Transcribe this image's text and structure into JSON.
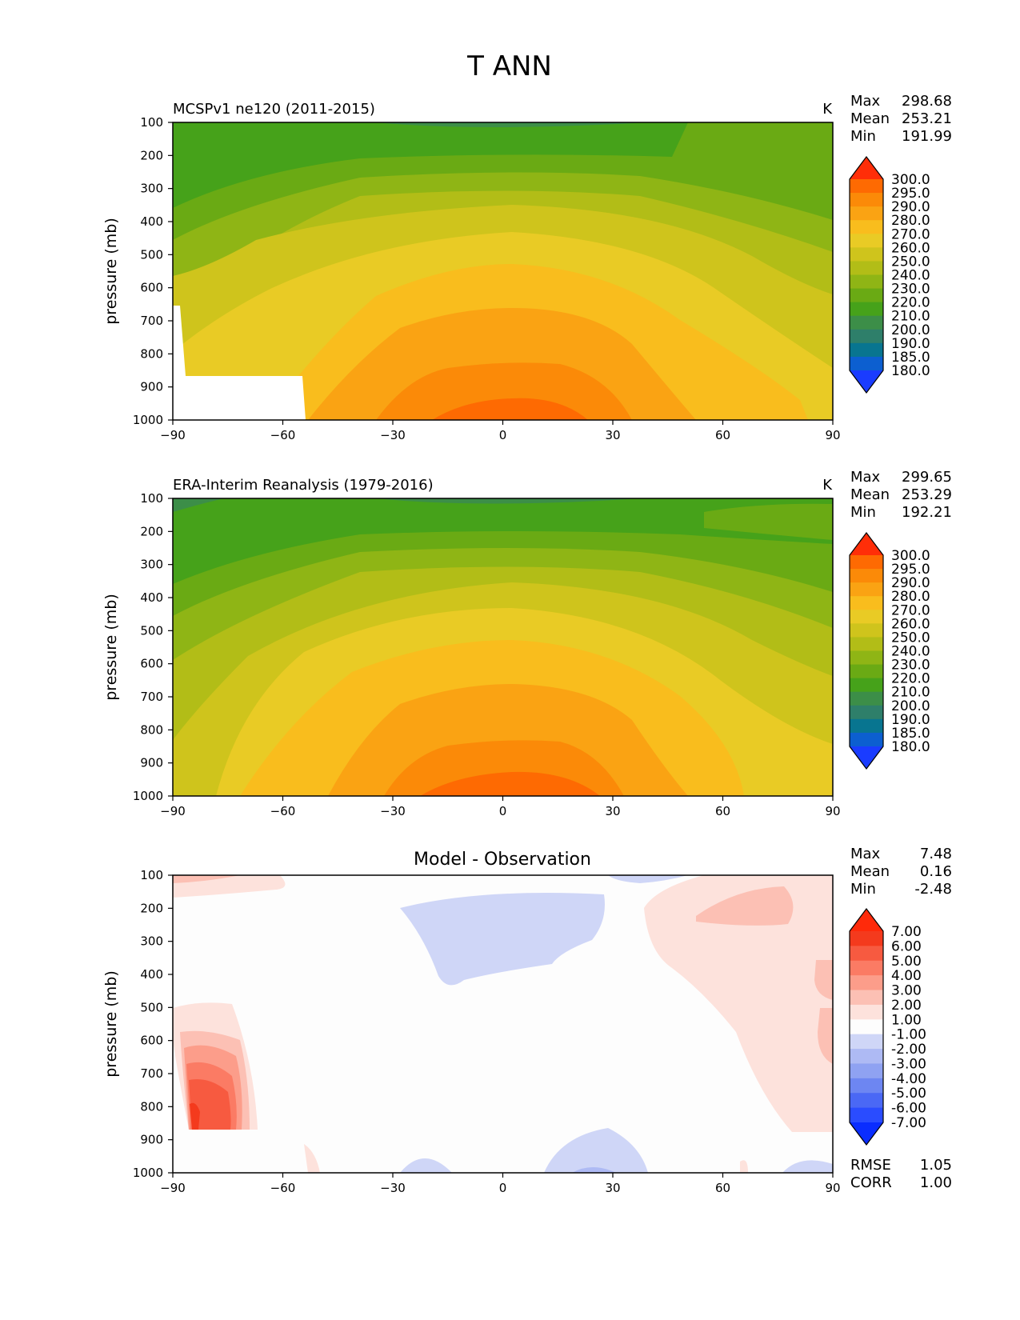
{
  "figure_title": "T ANN",
  "chart_data": [
    {
      "type": "heatmap",
      "title": "MCSPv1 ne120 (2011-2015)",
      "units": "K",
      "ylabel": "pressure (mb)",
      "xlabel": "",
      "xlim": [
        -90,
        90
      ],
      "ylim": [
        1000,
        100
      ],
      "x_ticks": [
        "−90",
        "−60",
        "−30",
        "0",
        "30",
        "60",
        "90"
      ],
      "y_ticks": [
        "100",
        "200",
        "300",
        "400",
        "500",
        "600",
        "700",
        "800",
        "900",
        "1000"
      ],
      "stats": [
        {
          "label": "Max",
          "value": "298.68"
        },
        {
          "label": "Mean",
          "value": "253.21"
        },
        {
          "label": "Min",
          "value": "191.99"
        }
      ],
      "colorbar_levels": [
        "180.0",
        "185.0",
        "190.0",
        "200.0",
        "210.0",
        "220.0",
        "230.0",
        "240.0",
        "250.0",
        "260.0",
        "270.0",
        "280.0",
        "290.0",
        "295.0",
        "300.0"
      ],
      "colorbar_colors": [
        "#1a3cff",
        "#0c5fd0",
        "#087590",
        "#2e7f6a",
        "#3c8e48",
        "#46a21a",
        "#6aaa14",
        "#8fb515",
        "#b2bd17",
        "#cfc41c",
        "#e9cb25",
        "#f9bd1d",
        "#faa313",
        "#fb8a08",
        "#fe6a02",
        "#ff2e08"
      ],
      "grid": false,
      "missing_region": "land/below surface south of about 55S",
      "field": "annual mean zonal mean temperature"
    },
    {
      "type": "heatmap",
      "title": "ERA-Interim Reanalysis (1979-2016)",
      "units": "K",
      "ylabel": "pressure (mb)",
      "xlabel": "",
      "xlim": [
        -90,
        90
      ],
      "ylim": [
        1000,
        100
      ],
      "x_ticks": [
        "−90",
        "−60",
        "−30",
        "0",
        "30",
        "60",
        "90"
      ],
      "y_ticks": [
        "100",
        "200",
        "300",
        "400",
        "500",
        "600",
        "700",
        "800",
        "900",
        "1000"
      ],
      "stats": [
        {
          "label": "Max",
          "value": "299.65"
        },
        {
          "label": "Mean",
          "value": "253.29"
        },
        {
          "label": "Min",
          "value": "192.21"
        }
      ],
      "colorbar_levels": [
        "180.0",
        "185.0",
        "190.0",
        "200.0",
        "210.0",
        "220.0",
        "230.0",
        "240.0",
        "250.0",
        "260.0",
        "270.0",
        "280.0",
        "290.0",
        "295.0",
        "300.0"
      ],
      "grid": false
    },
    {
      "type": "heatmap",
      "title": "Model - Observation",
      "units": "",
      "ylabel": "pressure (mb)",
      "xlabel": "",
      "xlim": [
        -90,
        90
      ],
      "ylim": [
        1000,
        100
      ],
      "x_ticks": [
        "−90",
        "−60",
        "−30",
        "0",
        "30",
        "60",
        "90"
      ],
      "y_ticks": [
        "100",
        "200",
        "300",
        "400",
        "500",
        "600",
        "700",
        "800",
        "900",
        "1000"
      ],
      "stats": [
        {
          "label": "Max",
          "value": "7.48"
        },
        {
          "label": "Mean",
          "value": "0.16"
        },
        {
          "label": "Min",
          "value": "-2.48"
        }
      ],
      "bottom_stats": [
        {
          "label": "RMSE",
          "value": "1.05"
        },
        {
          "label": "CORR",
          "value": "1.00"
        }
      ],
      "colorbar_levels": [
        "-7.00",
        "-6.00",
        "-5.00",
        "-4.00",
        "-3.00",
        "-2.00",
        "-1.00",
        "1.00",
        "2.00",
        "3.00",
        "4.00",
        "5.00",
        "6.00",
        "7.00"
      ],
      "colorbar_colors": [
        "#0a2dff",
        "#2a4cff",
        "#4a68f5",
        "#6d86f2",
        "#8fa2f2",
        "#aebaf4",
        "#cfd6f7",
        "#fdfdfd",
        "#fde2dc",
        "#fcc0b4",
        "#fc9d8a",
        "#fb7b64",
        "#f75a40",
        "#f43a1d",
        "#ff2a0a"
      ],
      "grid": false
    }
  ]
}
